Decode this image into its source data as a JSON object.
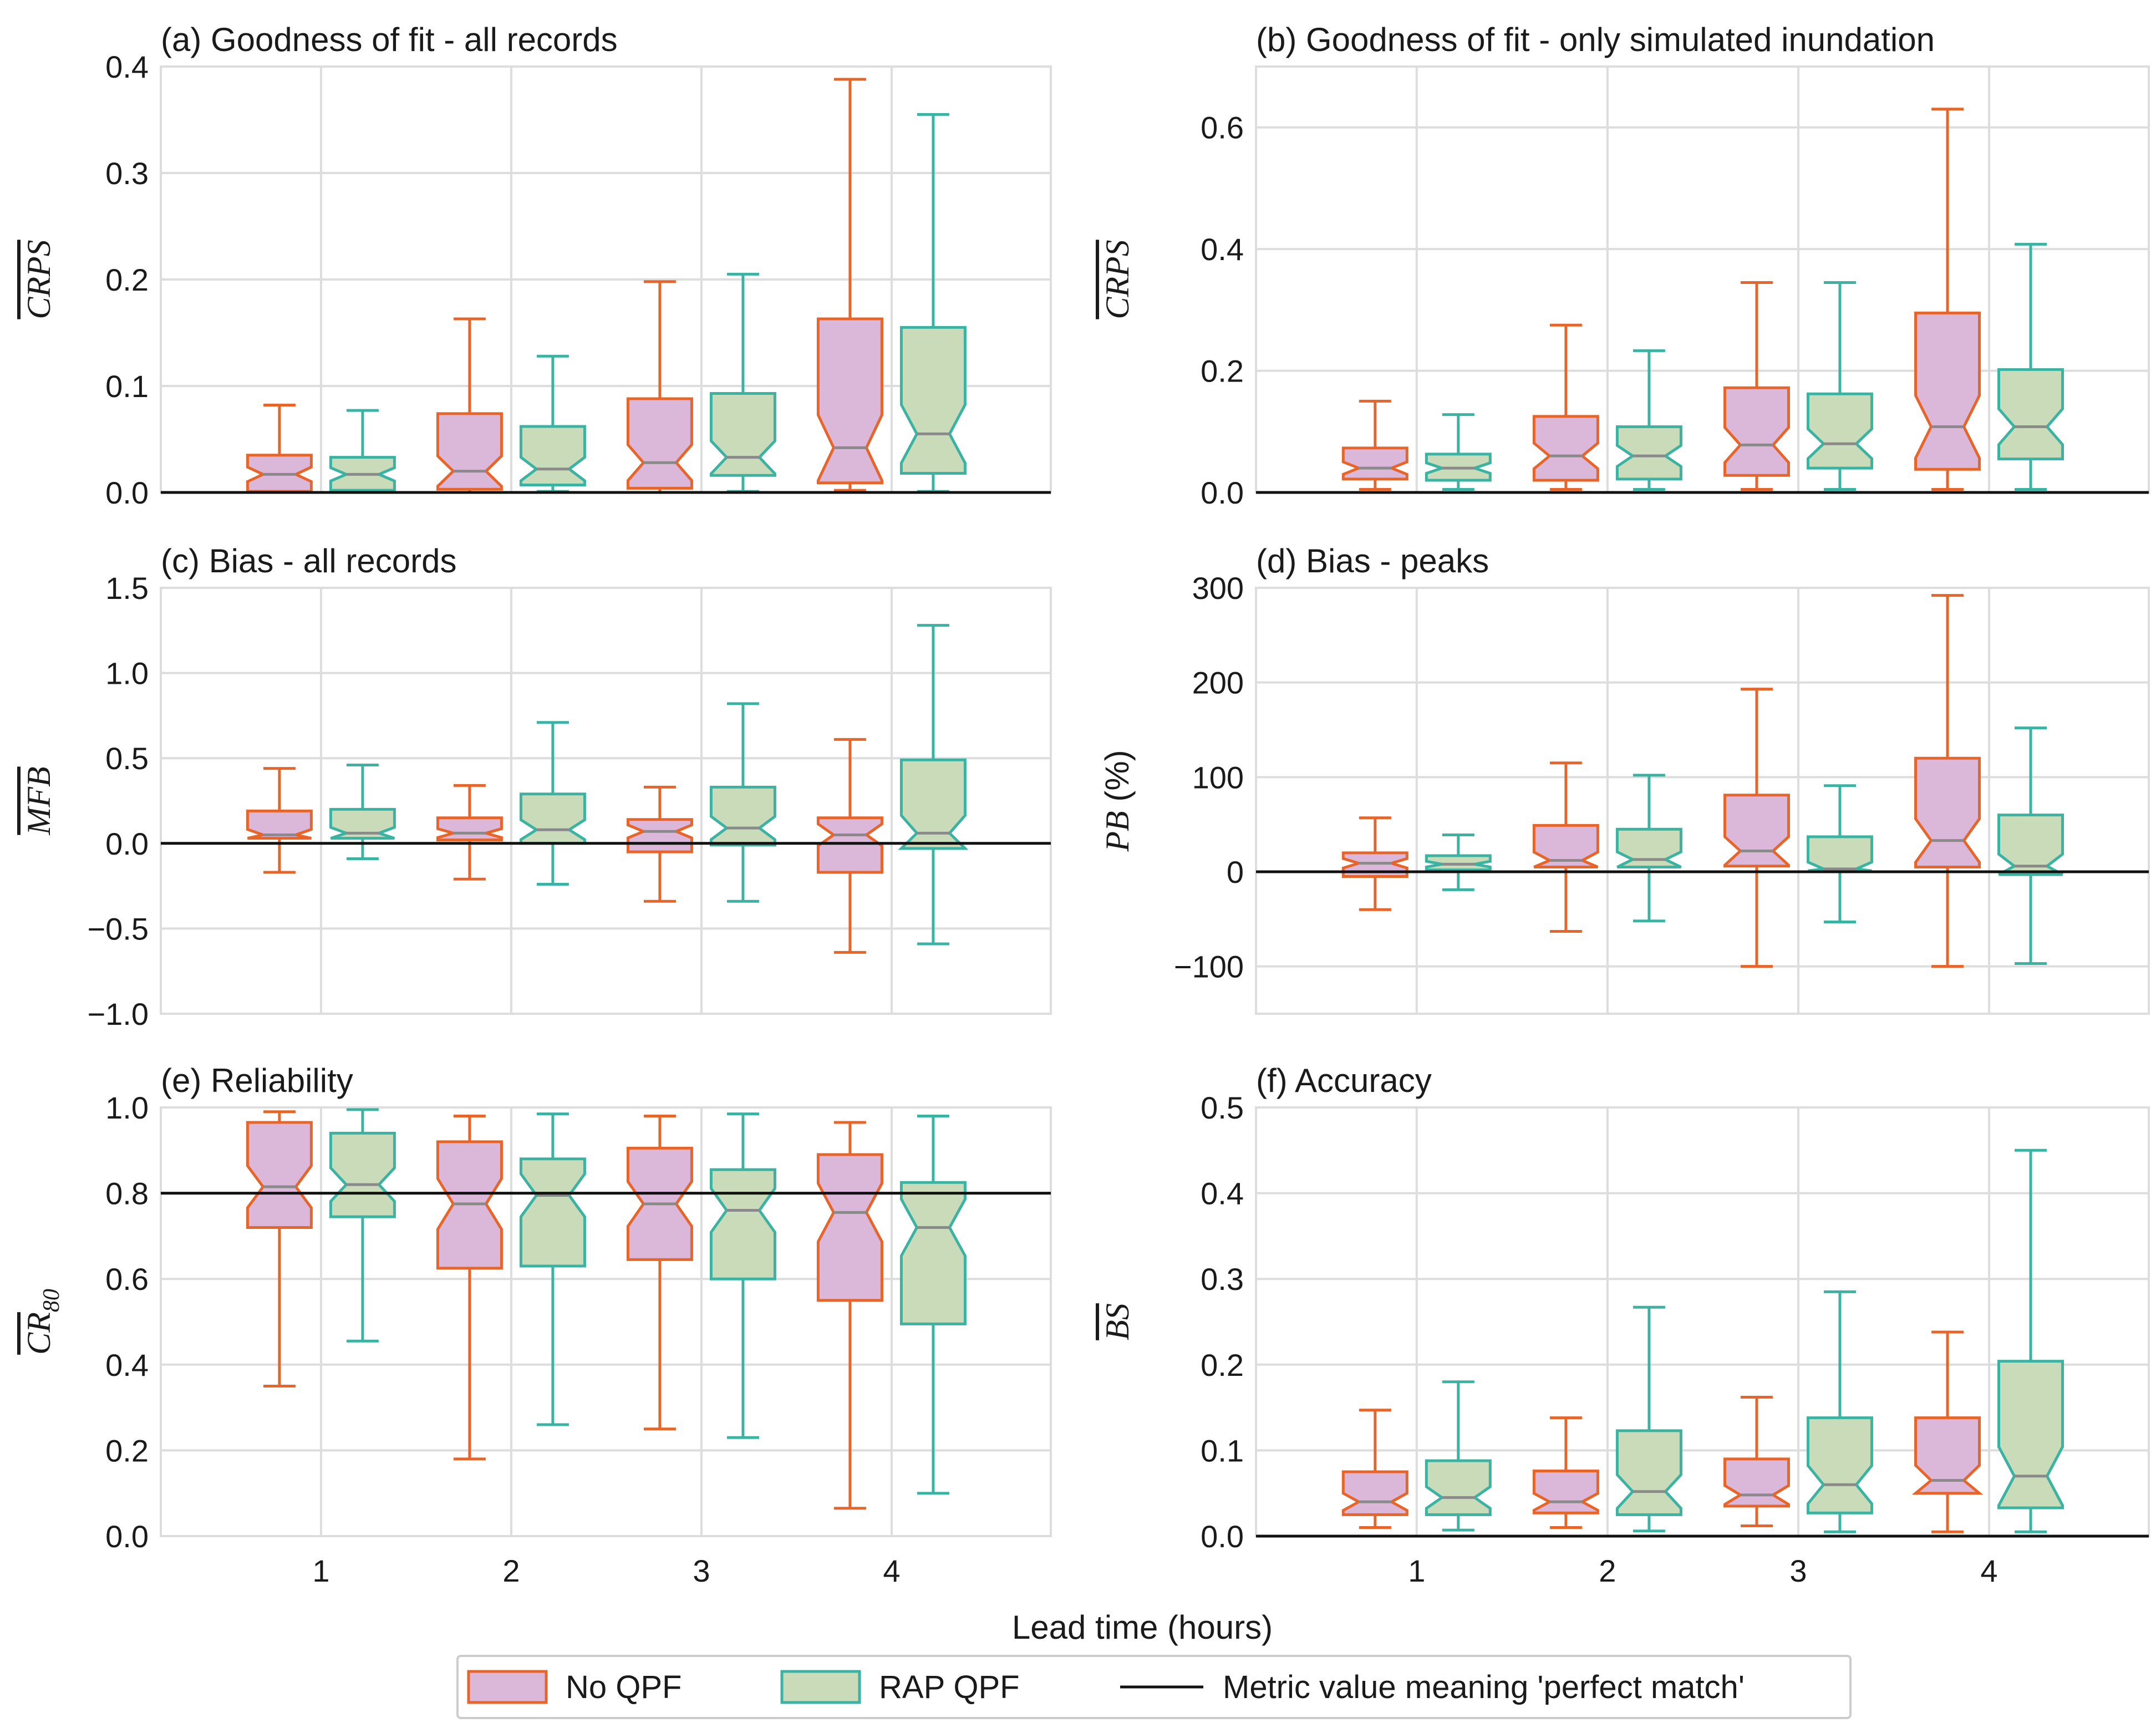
{
  "figure": {
    "xlabel": "Lead time (hours)",
    "x_categories": [
      "1",
      "2",
      "3",
      "4"
    ]
  },
  "legend": {
    "items": [
      {
        "label": "No QPF",
        "kind": "box",
        "fill": "#dbb8da",
        "edge": "#e8652a"
      },
      {
        "label": "RAP QPF",
        "kind": "box",
        "fill": "#c9dbb9",
        "edge": "#3bb3a3"
      },
      {
        "label": "Metric value meaning 'perfect match'",
        "kind": "line",
        "color": "#111111"
      }
    ]
  },
  "colors": {
    "no_qpf_fill": "#dbb8da",
    "no_qpf_edge": "#e8652a",
    "rap_qpf_fill": "#c9dbb9",
    "rap_qpf_edge": "#3bb3a3",
    "median": "#8a8a8a",
    "grid": "#dddddd",
    "reference_line": "#111111"
  },
  "chart_data": [
    {
      "type": "boxplot",
      "title": "(a) Goodness of fit - all records",
      "ylabel": "CRPS (overlined)",
      "ylabel_base": "CRPS",
      "ylabel_sub": "",
      "xlabel": "Lead time (hours)",
      "categories": [
        "1",
        "2",
        "3",
        "4"
      ],
      "ylim": [
        0,
        0.4
      ],
      "yticks": [
        0.0,
        0.1,
        0.2,
        0.3,
        0.4
      ],
      "ytick_labels": [
        "0.0",
        "0.1",
        "0.2",
        "0.3",
        "0.4"
      ],
      "reference_line": 0,
      "show_xticks": false,
      "series": [
        {
          "name": "No QPF",
          "boxes": [
            {
              "whislo": 0.0,
              "q1": 0.001,
              "med": 0.017,
              "q3": 0.035,
              "whishi": 0.082
            },
            {
              "whislo": 0.0,
              "q1": 0.003,
              "med": 0.02,
              "q3": 0.074,
              "whishi": 0.163
            },
            {
              "whislo": 0.0,
              "q1": 0.004,
              "med": 0.028,
              "q3": 0.088,
              "whishi": 0.198
            },
            {
              "whislo": 0.002,
              "q1": 0.009,
              "med": 0.042,
              "q3": 0.163,
              "whishi": 0.388
            }
          ]
        },
        {
          "name": "RAP QPF",
          "boxes": [
            {
              "whislo": 0.0,
              "q1": 0.002,
              "med": 0.017,
              "q3": 0.033,
              "whishi": 0.077
            },
            {
              "whislo": 0.001,
              "q1": 0.007,
              "med": 0.022,
              "q3": 0.062,
              "whishi": 0.128
            },
            {
              "whislo": 0.001,
              "q1": 0.016,
              "med": 0.033,
              "q3": 0.093,
              "whishi": 0.205
            },
            {
              "whislo": 0.001,
              "q1": 0.018,
              "med": 0.055,
              "q3": 0.155,
              "whishi": 0.355
            }
          ]
        }
      ]
    },
    {
      "type": "boxplot",
      "title": "(b) Goodness of fit - only simulated inundation",
      "ylabel": "CRPS (overlined)",
      "ylabel_base": "CRPS",
      "ylabel_sub": "",
      "xlabel": "Lead time (hours)",
      "categories": [
        "1",
        "2",
        "3",
        "4"
      ],
      "ylim": [
        0,
        0.7
      ],
      "yticks": [
        0.0,
        0.2,
        0.4,
        0.6
      ],
      "ytick_labels": [
        "0.0",
        "0.2",
        "0.4",
        "0.6"
      ],
      "reference_line": 0,
      "show_xticks": false,
      "series": [
        {
          "name": "No QPF",
          "boxes": [
            {
              "whislo": 0.005,
              "q1": 0.022,
              "med": 0.04,
              "q3": 0.073,
              "whishi": 0.15
            },
            {
              "whislo": 0.005,
              "q1": 0.02,
              "med": 0.06,
              "q3": 0.125,
              "whishi": 0.275
            },
            {
              "whislo": 0.005,
              "q1": 0.028,
              "med": 0.078,
              "q3": 0.172,
              "whishi": 0.345
            },
            {
              "whislo": 0.005,
              "q1": 0.038,
              "med": 0.108,
              "q3": 0.295,
              "whishi": 0.63
            }
          ]
        },
        {
          "name": "RAP QPF",
          "boxes": [
            {
              "whislo": 0.005,
              "q1": 0.02,
              "med": 0.04,
              "q3": 0.063,
              "whishi": 0.128
            },
            {
              "whislo": 0.005,
              "q1": 0.022,
              "med": 0.06,
              "q3": 0.108,
              "whishi": 0.233
            },
            {
              "whislo": 0.005,
              "q1": 0.04,
              "med": 0.08,
              "q3": 0.162,
              "whishi": 0.345
            },
            {
              "whislo": 0.005,
              "q1": 0.055,
              "med": 0.108,
              "q3": 0.202,
              "whishi": 0.408
            }
          ]
        }
      ]
    },
    {
      "type": "boxplot",
      "title": "(c) Bias - all records",
      "ylabel": "MFB (overlined)",
      "ylabel_base": "MFB",
      "ylabel_sub": "",
      "xlabel": "Lead time (hours)",
      "categories": [
        "1",
        "2",
        "3",
        "4"
      ],
      "ylim": [
        -1.0,
        1.5
      ],
      "yticks": [
        -1.0,
        -0.5,
        0.0,
        0.5,
        1.0,
        1.5
      ],
      "ytick_labels": [
        "−1.0",
        "−0.5",
        "0.0",
        "0.5",
        "1.0",
        "1.5"
      ],
      "reference_line": 0,
      "show_xticks": false,
      "series": [
        {
          "name": "No QPF",
          "boxes": [
            {
              "whislo": -0.17,
              "q1": 0.03,
              "med": 0.05,
              "q3": 0.19,
              "whishi": 0.44
            },
            {
              "whislo": -0.21,
              "q1": 0.02,
              "med": 0.06,
              "q3": 0.15,
              "whishi": 0.34
            },
            {
              "whislo": -0.34,
              "q1": -0.05,
              "med": 0.07,
              "q3": 0.14,
              "whishi": 0.33
            },
            {
              "whislo": -0.64,
              "q1": -0.17,
              "med": 0.05,
              "q3": 0.15,
              "whishi": 0.61
            }
          ]
        },
        {
          "name": "RAP QPF",
          "boxes": [
            {
              "whislo": -0.09,
              "q1": 0.03,
              "med": 0.06,
              "q3": 0.2,
              "whishi": 0.46
            },
            {
              "whislo": -0.24,
              "q1": 0.0,
              "med": 0.08,
              "q3": 0.29,
              "whishi": 0.71
            },
            {
              "whislo": -0.34,
              "q1": -0.01,
              "med": 0.09,
              "q3": 0.33,
              "whishi": 0.82
            },
            {
              "whislo": -0.59,
              "q1": -0.03,
              "med": 0.06,
              "q3": 0.49,
              "whishi": 1.28
            }
          ]
        }
      ]
    },
    {
      "type": "boxplot",
      "title": "(d) Bias - peaks",
      "ylabel": "PB (%)",
      "ylabel_base": "PB",
      "ylabel_sub": "",
      "ylabel_suffix": " (%)",
      "xlabel": "Lead time (hours)",
      "categories": [
        "1",
        "2",
        "3",
        "4"
      ],
      "ylim": [
        -150,
        300
      ],
      "yticks": [
        -100,
        0,
        100,
        200,
        300
      ],
      "ytick_labels": [
        "−100",
        "0",
        "100",
        "200",
        "300"
      ],
      "reference_line": 0,
      "show_xticks": false,
      "series": [
        {
          "name": "No QPF",
          "boxes": [
            {
              "whislo": -40,
              "q1": -5,
              "med": 9,
              "q3": 20,
              "whishi": 57
            },
            {
              "whislo": -63,
              "q1": 5,
              "med": 12,
              "q3": 49,
              "whishi": 115
            },
            {
              "whislo": -100,
              "q1": 6,
              "med": 22,
              "q3": 81,
              "whishi": 193
            },
            {
              "whislo": -100,
              "q1": 5,
              "med": 33,
              "q3": 120,
              "whishi": 292
            }
          ]
        },
        {
          "name": "RAP QPF",
          "boxes": [
            {
              "whislo": -19,
              "q1": 2,
              "med": 8,
              "q3": 17,
              "whishi": 39
            },
            {
              "whislo": -52,
              "q1": 5,
              "med": 13,
              "q3": 45,
              "whishi": 102
            },
            {
              "whislo": -53,
              "q1": 1,
              "med": 3,
              "q3": 37,
              "whishi": 91
            },
            {
              "whislo": -97,
              "q1": -3,
              "med": 6,
              "q3": 60,
              "whishi": 152
            }
          ]
        }
      ]
    },
    {
      "type": "boxplot",
      "title": "(e) Reliability",
      "ylabel": "CR80 (overlined)",
      "ylabel_base": "CR",
      "ylabel_sub": "80",
      "xlabel": "Lead time (hours)",
      "categories": [
        "1",
        "2",
        "3",
        "4"
      ],
      "ylim": [
        0,
        1.0
      ],
      "yticks": [
        0.0,
        0.2,
        0.4,
        0.6,
        0.8,
        1.0
      ],
      "ytick_labels": [
        "0.0",
        "0.2",
        "0.4",
        "0.6",
        "0.8",
        "1.0"
      ],
      "reference_line": 0.8,
      "show_xticks": true,
      "series": [
        {
          "name": "No QPF",
          "boxes": [
            {
              "whislo": 0.35,
              "q1": 0.72,
              "med": 0.815,
              "q3": 0.965,
              "whishi": 0.99
            },
            {
              "whislo": 0.18,
              "q1": 0.625,
              "med": 0.775,
              "q3": 0.92,
              "whishi": 0.98
            },
            {
              "whislo": 0.25,
              "q1": 0.645,
              "med": 0.775,
              "q3": 0.905,
              "whishi": 0.98
            },
            {
              "whislo": 0.065,
              "q1": 0.55,
              "med": 0.755,
              "q3": 0.89,
              "whishi": 0.965
            }
          ]
        },
        {
          "name": "RAP QPF",
          "boxes": [
            {
              "whislo": 0.455,
              "q1": 0.745,
              "med": 0.82,
              "q3": 0.94,
              "whishi": 0.995
            },
            {
              "whislo": 0.26,
              "q1": 0.63,
              "med": 0.795,
              "q3": 0.88,
              "whishi": 0.985
            },
            {
              "whislo": 0.23,
              "q1": 0.6,
              "med": 0.76,
              "q3": 0.855,
              "whishi": 0.985
            },
            {
              "whislo": 0.1,
              "q1": 0.495,
              "med": 0.72,
              "q3": 0.825,
              "whishi": 0.98
            }
          ]
        }
      ]
    },
    {
      "type": "boxplot",
      "title": "(f) Accuracy",
      "ylabel": "BS (overlined)",
      "ylabel_base": "BS",
      "ylabel_sub": "",
      "xlabel": "Lead time (hours)",
      "categories": [
        "1",
        "2",
        "3",
        "4"
      ],
      "ylim": [
        0,
        0.5
      ],
      "yticks": [
        0.0,
        0.1,
        0.2,
        0.3,
        0.4,
        0.5
      ],
      "ytick_labels": [
        "0.0",
        "0.1",
        "0.2",
        "0.3",
        "0.4",
        "0.5"
      ],
      "reference_line": 0,
      "show_xticks": true,
      "series": [
        {
          "name": "No QPF",
          "boxes": [
            {
              "whislo": 0.01,
              "q1": 0.025,
              "med": 0.04,
              "q3": 0.075,
              "whishi": 0.147
            },
            {
              "whislo": 0.01,
              "q1": 0.027,
              "med": 0.04,
              "q3": 0.076,
              "whishi": 0.138
            },
            {
              "whislo": 0.012,
              "q1": 0.035,
              "med": 0.048,
              "q3": 0.09,
              "whishi": 0.162
            },
            {
              "whislo": 0.005,
              "q1": 0.05,
              "med": 0.065,
              "q3": 0.138,
              "whishi": 0.238
            }
          ]
        },
        {
          "name": "RAP QPF",
          "boxes": [
            {
              "whislo": 0.007,
              "q1": 0.025,
              "med": 0.045,
              "q3": 0.088,
              "whishi": 0.18
            },
            {
              "whislo": 0.006,
              "q1": 0.025,
              "med": 0.052,
              "q3": 0.123,
              "whishi": 0.267
            },
            {
              "whislo": 0.005,
              "q1": 0.027,
              "med": 0.06,
              "q3": 0.138,
              "whishi": 0.285
            },
            {
              "whislo": 0.005,
              "q1": 0.033,
              "med": 0.07,
              "q3": 0.204,
              "whishi": 0.45
            }
          ]
        }
      ]
    }
  ]
}
